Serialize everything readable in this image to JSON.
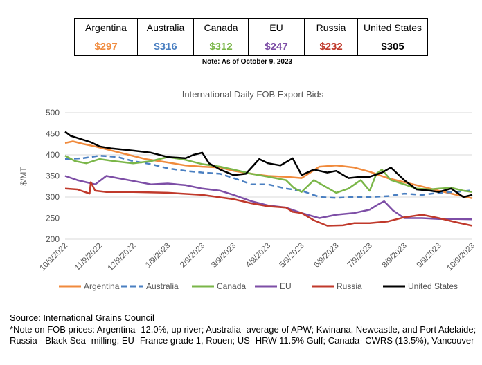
{
  "table": {
    "headers": [
      "Argentina",
      "Australia",
      "Canada",
      "EU",
      "Russia",
      "United States"
    ],
    "values": [
      "$297",
      "$316",
      "$312",
      "$247",
      "$232",
      "$305"
    ],
    "value_colors": [
      "#f08a3c",
      "#4a7fc1",
      "#7ab648",
      "#7d4ea6",
      "#c0392b",
      "#000000"
    ],
    "note": "Note: As of October 9, 2023"
  },
  "chart_data": {
    "type": "line",
    "title": "International Daily FOB Export Bids",
    "xlabel": "",
    "ylabel": "$/MT",
    "ylim": [
      200,
      500
    ],
    "yticks": [
      200,
      250,
      300,
      350,
      400,
      450,
      500
    ],
    "xlim": [
      "2022-10-09",
      "2023-10-09"
    ],
    "xtick_labels": [
      "10/9/2022",
      "11/9/2022",
      "12/9/2022",
      "1/9/2023",
      "2/9/2023",
      "3/9/2023",
      "4/9/2023",
      "5/9/2023",
      "6/9/2023",
      "7/9/2023",
      "8/9/2023",
      "9/9/2023",
      "10/9/2023"
    ],
    "grid": "horizontal",
    "legend_position": "bottom",
    "series": [
      {
        "name": "Argentina",
        "color": "#f08a3c",
        "dash": "solid",
        "x": [
          "2022-10-09",
          "2022-10-16",
          "2022-10-25",
          "2022-11-05",
          "2022-11-20",
          "2022-12-05",
          "2022-12-20",
          "2023-01-09",
          "2023-01-25",
          "2023-02-09",
          "2023-02-25",
          "2023-03-09",
          "2023-03-25",
          "2023-04-09",
          "2023-04-25",
          "2023-05-09",
          "2023-05-25",
          "2023-06-09",
          "2023-06-25",
          "2023-07-09",
          "2023-07-25",
          "2023-08-09",
          "2023-08-25",
          "2023-09-09",
          "2023-09-25",
          "2023-10-09"
        ],
        "y": [
          428,
          432,
          426,
          420,
          410,
          400,
          390,
          382,
          375,
          372,
          370,
          362,
          355,
          350,
          348,
          345,
          372,
          375,
          370,
          360,
          345,
          335,
          325,
          315,
          305,
          297
        ]
      },
      {
        "name": "Australia",
        "color": "#4a7fc1",
        "dash": "dashed",
        "x": [
          "2022-10-09",
          "2022-10-25",
          "2022-11-09",
          "2022-11-25",
          "2022-12-09",
          "2022-12-25",
          "2023-01-09",
          "2023-01-25",
          "2023-02-09",
          "2023-02-25",
          "2023-03-09",
          "2023-03-25",
          "2023-04-09",
          "2023-04-25",
          "2023-05-09",
          "2023-05-25",
          "2023-06-09",
          "2023-06-25",
          "2023-07-09",
          "2023-07-25",
          "2023-08-09",
          "2023-08-25",
          "2023-09-09",
          "2023-09-25",
          "2023-10-09"
        ],
        "y": [
          390,
          392,
          398,
          395,
          385,
          378,
          368,
          362,
          358,
          355,
          345,
          330,
          330,
          320,
          315,
          300,
          298,
          300,
          300,
          302,
          308,
          305,
          310,
          312,
          316
        ]
      },
      {
        "name": "Canada",
        "color": "#7ab648",
        "dash": "solid",
        "x": [
          "2022-10-09",
          "2022-10-18",
          "2022-10-28",
          "2022-11-09",
          "2022-11-22",
          "2022-12-09",
          "2022-12-25",
          "2023-01-09",
          "2023-01-25",
          "2023-02-09",
          "2023-02-25",
          "2023-03-09",
          "2023-03-25",
          "2023-04-09",
          "2023-04-25",
          "2023-05-02",
          "2023-05-09",
          "2023-05-20",
          "2023-06-01",
          "2023-06-09",
          "2023-06-20",
          "2023-07-01",
          "2023-07-09",
          "2023-07-15",
          "2023-07-20",
          "2023-07-28",
          "2023-08-09",
          "2023-08-20",
          "2023-09-01",
          "2023-09-09",
          "2023-09-20",
          "2023-10-01",
          "2023-10-09"
        ],
        "y": [
          398,
          385,
          380,
          390,
          385,
          380,
          385,
          395,
          388,
          378,
          372,
          365,
          355,
          348,
          340,
          322,
          312,
          340,
          322,
          310,
          320,
          340,
          315,
          355,
          365,
          340,
          330,
          320,
          318,
          320,
          322,
          315,
          312
        ]
      },
      {
        "name": "EU",
        "color": "#7d4ea6",
        "dash": "solid",
        "x": [
          "2022-10-09",
          "2022-10-20",
          "2022-11-05",
          "2022-11-15",
          "2022-11-25",
          "2022-12-09",
          "2022-12-25",
          "2023-01-09",
          "2023-01-25",
          "2023-02-09",
          "2023-02-25",
          "2023-03-09",
          "2023-03-25",
          "2023-04-09",
          "2023-04-25",
          "2023-05-09",
          "2023-05-25",
          "2023-06-09",
          "2023-06-25",
          "2023-07-09",
          "2023-07-15",
          "2023-07-22",
          "2023-07-30",
          "2023-08-09",
          "2023-08-25",
          "2023-09-09",
          "2023-09-25",
          "2023-10-09"
        ],
        "y": [
          350,
          340,
          330,
          350,
          345,
          338,
          330,
          332,
          328,
          320,
          315,
          305,
          290,
          280,
          275,
          262,
          250,
          258,
          262,
          270,
          280,
          290,
          268,
          250,
          250,
          248,
          248,
          247
        ]
      },
      {
        "name": "Russia",
        "color": "#c0392b",
        "dash": "solid",
        "x": [
          "2022-10-09",
          "2022-10-20",
          "2022-10-31",
          "2022-11-01",
          "2022-11-05",
          "2022-11-15",
          "2022-12-09",
          "2023-01-09",
          "2023-02-09",
          "2023-03-09",
          "2023-03-25",
          "2023-04-09",
          "2023-04-25",
          "2023-05-01",
          "2023-05-09",
          "2023-05-20",
          "2023-06-01",
          "2023-06-15",
          "2023-06-25",
          "2023-07-09",
          "2023-07-25",
          "2023-08-09",
          "2023-08-25",
          "2023-09-09",
          "2023-09-25",
          "2023-10-09"
        ],
        "y": [
          320,
          318,
          308,
          335,
          315,
          312,
          312,
          310,
          305,
          295,
          285,
          278,
          275,
          265,
          262,
          245,
          232,
          233,
          238,
          238,
          242,
          252,
          258,
          250,
          240,
          232
        ]
      },
      {
        "name": "United States",
        "color": "#000000",
        "dash": "solid",
        "x": [
          "2022-10-09",
          "2022-10-14",
          "2022-10-20",
          "2022-11-01",
          "2022-11-09",
          "2022-11-20",
          "2022-12-09",
          "2022-12-25",
          "2023-01-09",
          "2023-01-25",
          "2023-02-01",
          "2023-02-09",
          "2023-02-15",
          "2023-02-25",
          "2023-03-09",
          "2023-03-20",
          "2023-04-01",
          "2023-04-09",
          "2023-04-20",
          "2023-05-01",
          "2023-05-09",
          "2023-05-20",
          "2023-06-01",
          "2023-06-09",
          "2023-06-20",
          "2023-07-01",
          "2023-07-09",
          "2023-07-20",
          "2023-07-28",
          "2023-08-09",
          "2023-08-20",
          "2023-09-01",
          "2023-09-09",
          "2023-09-20",
          "2023-10-01",
          "2023-10-09"
        ],
        "y": [
          455,
          445,
          440,
          430,
          420,
          415,
          410,
          405,
          395,
          392,
          400,
          405,
          380,
          365,
          352,
          355,
          390,
          380,
          375,
          392,
          352,
          365,
          358,
          362,
          345,
          348,
          348,
          358,
          370,
          340,
          318,
          315,
          312,
          320,
          300,
          305
        ]
      }
    ]
  },
  "source": {
    "line1": "Source: International Grains Council",
    "line2": "*Note on FOB prices: Argentina- 12.0%, up river; Australia- average of APW; Kwinana, Newcastle, and Port Adelaide; Russia - Black Sea- milling; EU- France grade 1, Rouen; US- HRW 11.5% Gulf; Canada- CWRS (13.5%), Vancouver"
  }
}
